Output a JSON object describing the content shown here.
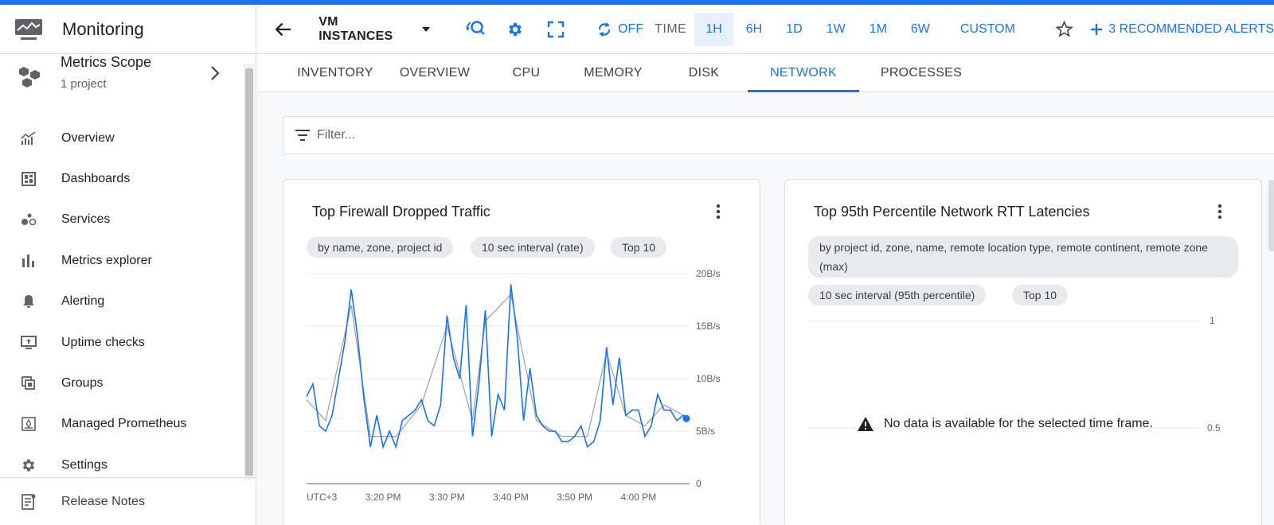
{
  "app": {
    "title": "Monitoring"
  },
  "scope": {
    "title": "Metrics Scope",
    "subtitle": "1 project"
  },
  "nav": {
    "items": [
      {
        "label": "Overview",
        "icon": "overview-chart-icon"
      },
      {
        "label": "Dashboards",
        "icon": "dashboard-icon"
      },
      {
        "label": "Services",
        "icon": "services-icon"
      },
      {
        "label": "Metrics explorer",
        "icon": "bar-chart-icon"
      },
      {
        "label": "Alerting",
        "icon": "bell-icon"
      },
      {
        "label": "Uptime checks",
        "icon": "monitor-icon"
      },
      {
        "label": "Groups",
        "icon": "groups-icon"
      },
      {
        "label": "Managed Prometheus",
        "icon": "prometheus-icon"
      },
      {
        "label": "Settings",
        "icon": "gear-icon"
      }
    ],
    "release_notes": "Release Notes"
  },
  "toolbar": {
    "resource": "VM INSTANCES",
    "refresh": "OFF",
    "time_label": "TIME",
    "ranges": [
      "1H",
      "6H",
      "1D",
      "1W",
      "1M",
      "6W"
    ],
    "active_range": "1H",
    "custom": "CUSTOM",
    "recommended": "3 RECOMMENDED ALERTS"
  },
  "tabs": [
    "INVENTORY",
    "OVERVIEW",
    "CPU",
    "MEMORY",
    "DISK",
    "NETWORK",
    "PROCESSES"
  ],
  "active_tab": "NETWORK",
  "filter": {
    "placeholder": "Filter..."
  },
  "cards": {
    "firewall": {
      "title": "Top Firewall Dropped Traffic",
      "chips": [
        "by name, zone, project id",
        "10 sec interval (rate)",
        "Top 10"
      ]
    },
    "rtt": {
      "title": "Top 95th Percentile Network RTT Latencies",
      "chips": [
        "by project id, zone, name, remote location type, remote continent, remote zone (max)",
        "10 sec interval (95th percentile)",
        "Top 10"
      ],
      "no_data": "No data is available for the selected time frame.",
      "y_ticks": [
        "1",
        "0.5"
      ]
    }
  },
  "colors": {
    "accent": "#1a73e8",
    "series_blue": "#1a73e8",
    "series_gray": "#9aa0a6"
  },
  "chart_data": [
    {
      "type": "line",
      "title": "Top Firewall Dropped Traffic",
      "xlabel": "",
      "ylabel": "",
      "unit": "B/s",
      "x_label": "UTC+3",
      "x_ticks": [
        "3:20 PM",
        "3:30 PM",
        "3:40 PM",
        "3:50 PM",
        "4:00 PM"
      ],
      "y_ticks": [
        "20B/s",
        "15B/s",
        "10B/s",
        "5B/s",
        "0"
      ],
      "ylim": [
        0,
        20
      ],
      "xlim": [
        0,
        60
      ],
      "grid": true,
      "series": [
        {
          "color": "#1a73e8",
          "x": [
            0,
            1,
            2,
            3,
            4,
            5,
            6,
            7,
            8,
            9,
            10,
            11,
            12,
            13,
            14,
            15,
            16,
            17,
            18,
            19,
            20,
            21,
            22,
            23,
            24,
            25,
            26,
            27,
            28,
            29,
            30,
            31,
            32,
            33,
            34,
            35,
            36,
            37,
            38,
            39,
            40,
            41,
            42,
            43,
            44,
            45,
            46,
            47,
            48,
            49,
            50,
            51,
            52,
            53,
            54,
            55,
            56,
            57,
            58,
            59,
            60
          ],
          "values": [
            8.3,
            9.5,
            5.5,
            5.0,
            6.5,
            10.0,
            13.5,
            18.5,
            14.0,
            8.0,
            3.5,
            6.5,
            3.5,
            5.0,
            3.5,
            6.0,
            6.5,
            7.0,
            8.0,
            6.0,
            5.5,
            7.5,
            16.0,
            12.0,
            10.0,
            17.0,
            4.5,
            9.5,
            16.5,
            4.5,
            8.5,
            7.0,
            19.0,
            14.0,
            6.0,
            11.0,
            6.5,
            5.5,
            5.0,
            5.0,
            4.0,
            4.0,
            4.5,
            5.5,
            3.5,
            4.0,
            6.0,
            13.0,
            7.5,
            12.0,
            6.5,
            7.0,
            7.0,
            4.5,
            5.5,
            8.5,
            7.0,
            7.0,
            6.0,
            6.5,
            6.2
          ]
        },
        {
          "color": "#9aa0a6",
          "x": [
            0,
            3,
            7,
            10,
            14,
            18,
            22,
            26,
            28,
            32,
            36,
            40,
            44,
            47,
            50,
            53,
            56,
            60
          ],
          "values": [
            8.0,
            6.0,
            17.0,
            4.5,
            4.5,
            7.5,
            15.0,
            6.0,
            15.5,
            18.0,
            6.0,
            4.5,
            4.5,
            12.5,
            6.5,
            5.5,
            7.5,
            6.2
          ]
        }
      ]
    }
  ]
}
